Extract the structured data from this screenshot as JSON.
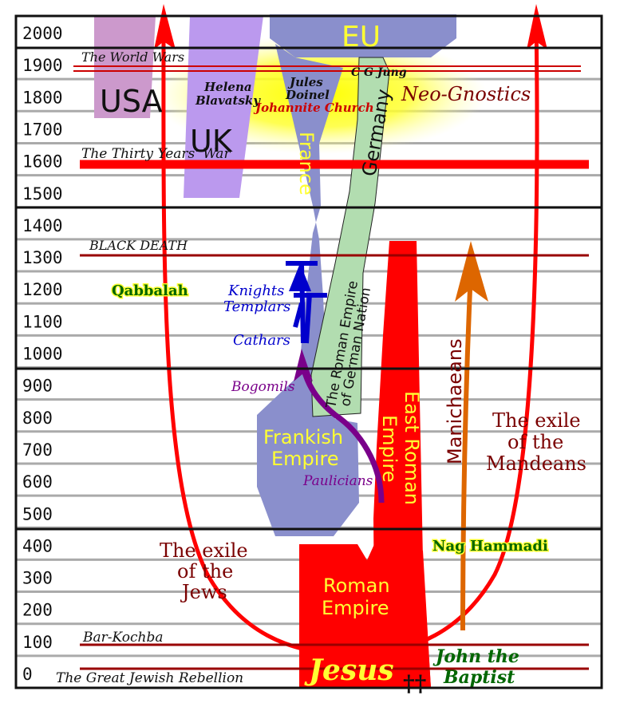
{
  "years": [
    "2000",
    "1900",
    "1800",
    "1700",
    "1600",
    "1500",
    "1400",
    "1300",
    "1200",
    "1100",
    "1000",
    "900",
    "800",
    "700",
    "600",
    "500",
    "400",
    "300",
    "200",
    "100",
    "0"
  ],
  "events": {
    "world_wars": "The World Wars",
    "thirty_years_war": "The Thirty Years' War",
    "black_death": "BLACK DEATH",
    "bar_kochba": "Bar-Kochba",
    "jewish_rebellion": "The Great Jewish Rebellion"
  },
  "regions": {
    "eu": "EU",
    "usa": "USA",
    "uk": "UK",
    "france": "France",
    "germany": "Germany",
    "hre_line1": "The Roman Empire",
    "hre_line2": "of German Nation",
    "frankish_line1": "Frankish",
    "frankish_line2": "Empire",
    "east_roman_line1": "East Roman",
    "east_roman_line2": "Empire",
    "roman_line1": "Roman",
    "roman_line2": "Empire"
  },
  "people": {
    "blavatsky_line1": "Helena",
    "blavatsky_line2": "Blavatsky",
    "doinel_line1": "Jules",
    "doinel_line2": "Doinel",
    "jung": "C G Jung",
    "johannite": "Johannite Church",
    "neo_gnostics": "Neo-Gnostics",
    "jesus": "Jesus",
    "baptist_line1": "John the",
    "baptist_line2": "Baptist"
  },
  "movements": {
    "qabbalah": "Qabbalah",
    "templars_line1": "Knights",
    "templars_line2": "Templars",
    "cathars": "Cathars",
    "bogomils": "Bogomils",
    "paulicians": "Paulicians",
    "manichaeans": "Manichaeans",
    "nag_hammadi": "Nag Hammadi",
    "mandeans_line1": "The exile",
    "mandeans_line2": "of the",
    "mandeans_line3": "Mandeans",
    "jews_line1": "The exile",
    "jews_line2": "of the",
    "jews_line3": "Jews"
  },
  "symbols": {
    "cross": "††"
  },
  "colors": {
    "red": "#ff0000",
    "dark_red": "#990000",
    "label_red": "#7a0000",
    "frankish_blue": "#8a8fcc",
    "hre_green": "#b2ddb0",
    "usa_pink": "#cc99cc",
    "uk_lavender": "#bb99ee",
    "templar_blue": "#0000cc",
    "purple": "#7a008a",
    "orange": "#dd6600",
    "yellow": "#ffff33",
    "green_text": "#006600"
  }
}
